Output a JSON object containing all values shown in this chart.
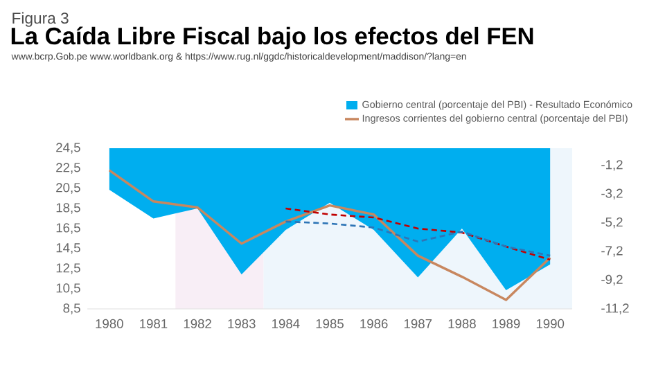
{
  "chart_data": {
    "type": "line",
    "title": "La Caída Libre Fiscal bajo los efectos del FEN",
    "annotations": [
      "Figura 3",
      "www.bcrp.Gob.pe www.worldbank.org &  https://www.rug.nl/ggdc/historicaldevelopment/maddison/?lang=en"
    ],
    "x": [
      1980,
      1981,
      1982,
      1983,
      1984,
      1985,
      1986,
      1987,
      1988,
      1989,
      1990
    ],
    "series": [
      {
        "name": "Gobierno central  (porcentaje del PBI) - Resultado Económico",
        "type": "area",
        "axis": "y2",
        "color": "#00aeef",
        "values": [
          -2.9,
          -4.9,
          -4.2,
          -8.8,
          -5.7,
          -3.8,
          -5.7,
          -9.0,
          -5.6,
          -9.9,
          -8.1
        ]
      },
      {
        "name": "Ingresos corrientes del gobierno central  (porcentaje del PBI)",
        "color": "#c8875f",
        "values": [
          22.3,
          19.2,
          18.6,
          15.0,
          17.2,
          18.8,
          17.9,
          13.8,
          11.7,
          9.4,
          13.6
        ]
      },
      {
        "line_style": "dashed",
        "color": "#c00000",
        "x": [
          1984,
          1985,
          1986,
          1987,
          1988,
          1989,
          1990
        ],
        "values": [
          18.5,
          17.9,
          17.6,
          16.5,
          16.1,
          14.7,
          13.4
        ]
      },
      {
        "line_style": "dashed",
        "color": "#2e75b6",
        "x": [
          1984,
          1985,
          1986,
          1987,
          1988,
          1989,
          1990
        ],
        "values": [
          17.2,
          17.0,
          16.6,
          15.2,
          16.2,
          14.7,
          13.8
        ]
      }
    ],
    "xlim": [
      1979.5,
      1990.5
    ],
    "xticks": [
      1980,
      1981,
      1982,
      1983,
      1984,
      1985,
      1986,
      1987,
      1988,
      1989,
      1990
    ],
    "ylim": [
      8.5,
      24.5
    ],
    "yticks": [
      {
        "value": 8.5,
        "label": "8,5"
      },
      {
        "value": 10.5,
        "label": "10,5"
      },
      {
        "value": 12.5,
        "label": "12,5"
      },
      {
        "value": 14.5,
        "label": "14,5"
      },
      {
        "value": 16.5,
        "label": "16,5"
      },
      {
        "value": 18.5,
        "label": "18,5"
      },
      {
        "value": 20.5,
        "label": "20,5"
      },
      {
        "value": 22.5,
        "label": "22,5"
      },
      {
        "value": 24.5,
        "label": "24,5"
      }
    ],
    "y2lim": [
      -11.2,
      0
    ],
    "y2ticks": [
      {
        "value": -11.2,
        "label": "-11,2"
      },
      {
        "value": -9.2,
        "label": "-9,2"
      },
      {
        "value": -7.2,
        "label": "-7,2"
      },
      {
        "value": -5.2,
        "label": "-5,2"
      },
      {
        "value": -3.2,
        "label": "-3,2"
      },
      {
        "value": -1.2,
        "label": "-1,2"
      }
    ],
    "bands": [
      {
        "axis": "x",
        "from": 1981.5,
        "to": 1983.5,
        "color": "#f8eef6"
      },
      {
        "axis": "x",
        "from": 1983.5,
        "to": 1990.5,
        "color": "#eef6fc"
      }
    ],
    "legend": "top",
    "marker": "none",
    "grid": false
  }
}
